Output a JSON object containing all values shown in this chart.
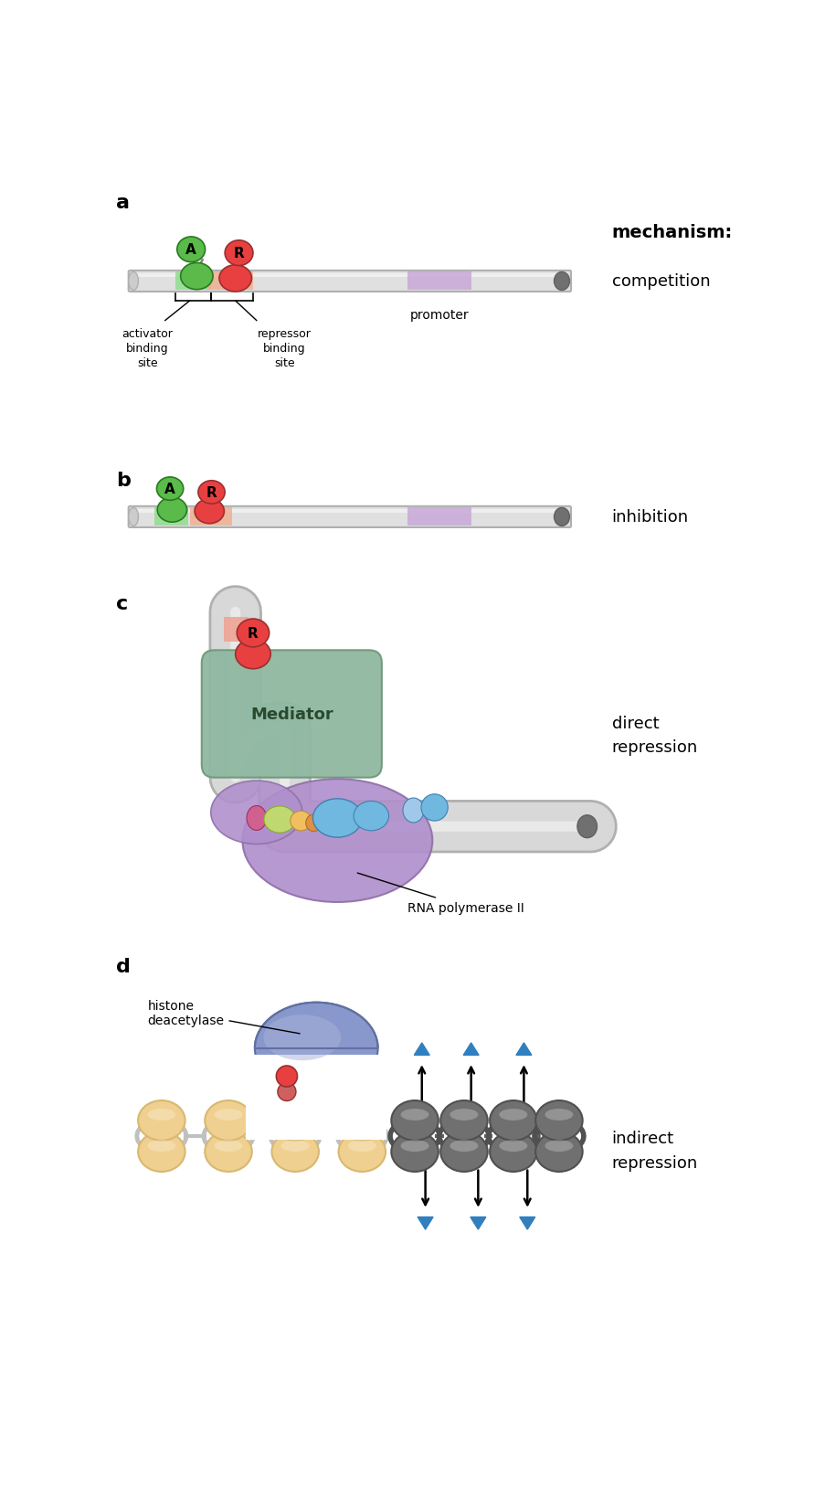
{
  "panel_labels": [
    "a",
    "b",
    "c",
    "d"
  ],
  "mechanism_label": "mechanism:",
  "panel_a_label": "competition",
  "panel_b_label": "inhibition",
  "panel_c_label": "direct\nrepression",
  "panel_d_label": "indirect\nrepression",
  "activator_color": "#5aba4a",
  "repressor_color": "#e84040",
  "green_light": "#aaddaa",
  "red_light": "#f0b0a0",
  "purple_color": "#c8a8d8",
  "dna_color_main": "#d8d8d8",
  "dna_color_end": "#808080",
  "mediator_color": "#8fb8a0",
  "rnap_color": "#b090cc",
  "blue_color": "#70b8e0",
  "blue_light": "#a0c8e8",
  "pink_color": "#d06090",
  "yellow_color": "#f0c060",
  "orange_color": "#e09040",
  "green_tfi": "#c0d870",
  "histone_color": "#f0d090",
  "histone_ring_color": "#d8b870",
  "histone_dark": "#707070",
  "histone_ring_dark": "#505050",
  "bg_color": "#ffffff",
  "hdac_color": "#8898cc",
  "hdac_light": "#aab0d8",
  "blue_arrow": "#3080c0"
}
